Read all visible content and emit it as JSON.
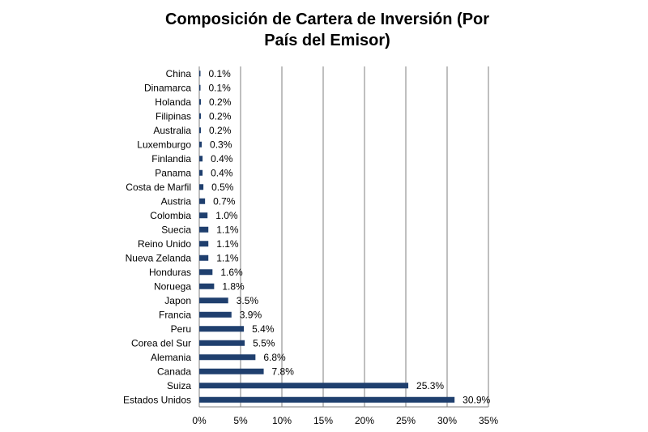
{
  "chart_data": {
    "type": "bar",
    "orientation": "horizontal",
    "title_lines": [
      "Composición de Cartera de Inversión (Por",
      "País del Emisor)"
    ],
    "categories": [
      "China",
      "Dinamarca",
      "Holanda",
      "Filipinas",
      "Australia",
      "Luxemburgo",
      "Finlandia",
      "Panama",
      "Costa de Marfil",
      "Austria",
      "Colombia",
      "Suecia",
      "Reino Unido",
      "Nueva Zelanda",
      "Honduras",
      "Noruega",
      "Japon",
      "Francia",
      "Peru",
      "Corea del Sur",
      "Alemania",
      "Canada",
      "Suiza",
      "Estados Unidos"
    ],
    "values": [
      0.1,
      0.1,
      0.2,
      0.2,
      0.2,
      0.3,
      0.4,
      0.4,
      0.5,
      0.7,
      1.0,
      1.1,
      1.1,
      1.1,
      1.6,
      1.8,
      3.5,
      3.9,
      5.4,
      5.5,
      6.8,
      7.8,
      25.3,
      30.9
    ],
    "value_labels": [
      "0.1%",
      "0.1%",
      "0.2%",
      "0.2%",
      "0.2%",
      "0.3%",
      "0.4%",
      "0.4%",
      "0.5%",
      "0.7%",
      "1.0%",
      "1.1%",
      "1.1%",
      "1.1%",
      "1.6%",
      "1.8%",
      "3.5%",
      "3.9%",
      "5.4%",
      "5.5%",
      "6.8%",
      "7.8%",
      "25.3%",
      "30.9%"
    ],
    "xlim": [
      0,
      35
    ],
    "x_ticks": [
      0,
      5,
      10,
      15,
      20,
      25,
      30,
      35
    ],
    "x_tick_labels": [
      "0%",
      "5%",
      "10%",
      "15%",
      "20%",
      "25%",
      "30%",
      "35%"
    ],
    "grid": "vertical",
    "bar_color": "#1f3f6e",
    "grid_color": "#7f7f7f"
  }
}
